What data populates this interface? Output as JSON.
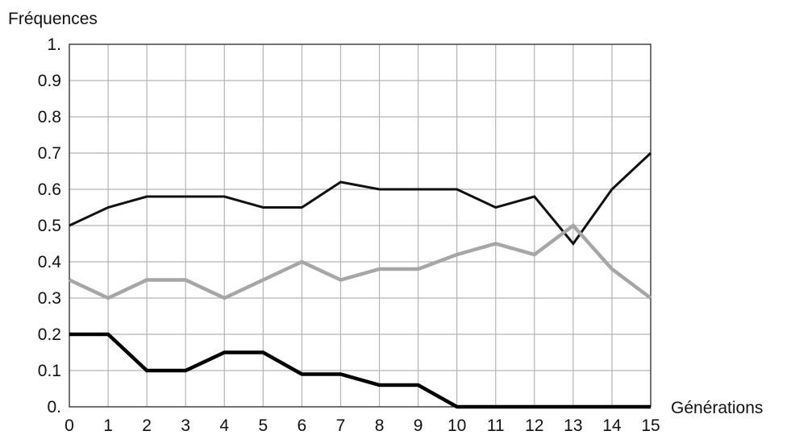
{
  "chart_data": {
    "type": "line",
    "title": "",
    "ylabel": "Fréquences",
    "xlabel": "Générations",
    "x": [
      0,
      1,
      2,
      3,
      4,
      5,
      6,
      7,
      8,
      9,
      10,
      11,
      12,
      13,
      14,
      15
    ],
    "xlim": [
      0,
      15
    ],
    "ylim": [
      0,
      1
    ],
    "x_ticks": [
      "0",
      "1",
      "2",
      "3",
      "4",
      "5",
      "6",
      "7",
      "8",
      "9",
      "10",
      "11",
      "12",
      "13",
      "14",
      "15"
    ],
    "y_ticks": [
      {
        "value": 0,
        "label": "0."
      },
      {
        "value": 0.1,
        "label": "0.1"
      },
      {
        "value": 0.2,
        "label": "0.2"
      },
      {
        "value": 0.3,
        "label": "0.3"
      },
      {
        "value": 0.4,
        "label": "0.4"
      },
      {
        "value": 0.5,
        "label": "0.5"
      },
      {
        "value": 0.6,
        "label": "0.6"
      },
      {
        "value": 0.7,
        "label": "0.7"
      },
      {
        "value": 0.8,
        "label": "0.8"
      },
      {
        "value": 0.9,
        "label": "0.9"
      },
      {
        "value": 1,
        "label": "1."
      }
    ],
    "grid": true,
    "legend": "none",
    "series": [
      {
        "color": "#111111",
        "width": "thin",
        "values": [
          0.5,
          0.55,
          0.58,
          0.58,
          0.58,
          0.55,
          0.55,
          0.62,
          0.6,
          0.6,
          0.6,
          0.55,
          0.58,
          0.45,
          0.6,
          0.7
        ]
      },
      {
        "color": "#a6a6a6",
        "width": "thick",
        "values": [
          0.35,
          0.3,
          0.35,
          0.35,
          0.3,
          0.35,
          0.4,
          0.35,
          0.38,
          0.38,
          0.42,
          0.45,
          0.42,
          0.5,
          0.38,
          0.3
        ]
      },
      {
        "color": "#000000",
        "width": "thick",
        "values": [
          0.2,
          0.2,
          0.1,
          0.1,
          0.15,
          0.15,
          0.09,
          0.09,
          0.06,
          0.06,
          0.0,
          0.0,
          0.0,
          0.0,
          0.0,
          0.0
        ]
      }
    ]
  }
}
